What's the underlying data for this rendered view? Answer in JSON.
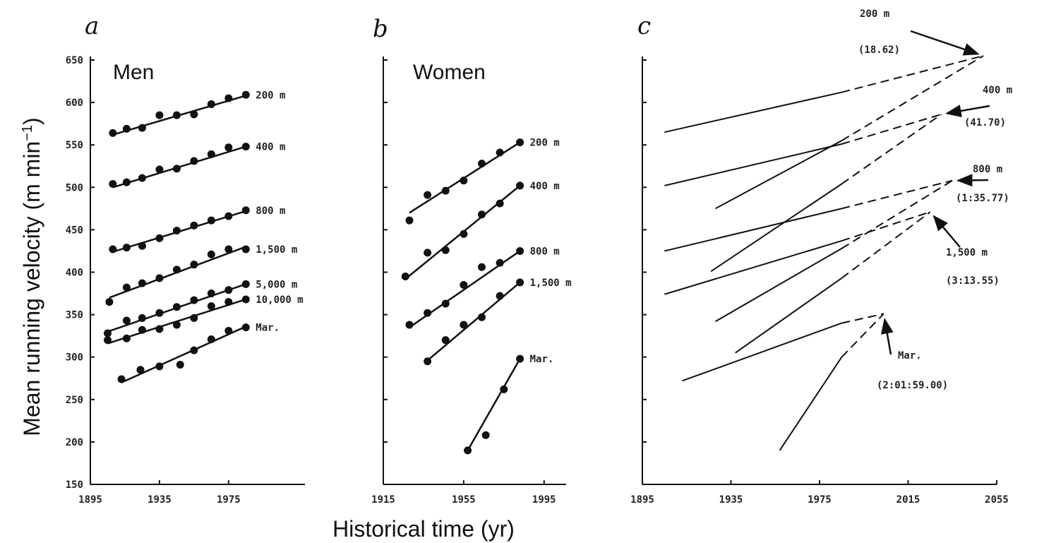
{
  "chart_data": {
    "type": "line",
    "ylabel": "Mean running velocity (m min",
    "ylabel_sup": "−1",
    "ylabel_end": ")",
    "xlabel": "Historical time (yr)",
    "ylim": [
      150,
      650
    ],
    "yticks": [
      150,
      200,
      250,
      300,
      350,
      400,
      450,
      500,
      550,
      600,
      650
    ],
    "panels": [
      {
        "letter": "a",
        "group_label": "Men",
        "xlim": [
          1895,
          2000
        ],
        "xticks": [
          1895,
          1935,
          1975
        ],
        "series": [
          {
            "name": "200 m",
            "points": [
              [
                1908,
                564
              ],
              [
                1916,
                569
              ],
              [
                1925,
                570
              ],
              [
                1935,
                585
              ],
              [
                1945,
                585
              ],
              [
                1955,
                586
              ],
              [
                1965,
                598
              ],
              [
                1975,
                605
              ],
              [
                1985,
                609
              ]
            ],
            "fit": [
              [
                1908,
                562
              ],
              [
                1985,
                608
              ]
            ]
          },
          {
            "name": "400 m",
            "points": [
              [
                1908,
                504
              ],
              [
                1916,
                506
              ],
              [
                1925,
                511
              ],
              [
                1935,
                521
              ],
              [
                1945,
                522
              ],
              [
                1955,
                531
              ],
              [
                1965,
                539
              ],
              [
                1975,
                547
              ],
              [
                1985,
                548
              ]
            ],
            "fit": [
              [
                1908,
                500
              ],
              [
                1985,
                548
              ]
            ]
          },
          {
            "name": "800 m",
            "points": [
              [
                1908,
                427
              ],
              [
                1916,
                429
              ],
              [
                1925,
                431
              ],
              [
                1935,
                440
              ],
              [
                1945,
                449
              ],
              [
                1955,
                455
              ],
              [
                1965,
                461
              ],
              [
                1975,
                466
              ],
              [
                1985,
                473
              ]
            ],
            "fit": [
              [
                1908,
                424
              ],
              [
                1985,
                472
              ]
            ]
          },
          {
            "name": "1,500 m",
            "points": [
              [
                1906,
                365
              ],
              [
                1916,
                382
              ],
              [
                1925,
                387
              ],
              [
                1935,
                393
              ],
              [
                1945,
                403
              ],
              [
                1955,
                409
              ],
              [
                1965,
                421
              ],
              [
                1975,
                427
              ],
              [
                1985,
                427
              ]
            ],
            "fit": [
              [
                1906,
                370
              ],
              [
                1985,
                430
              ]
            ]
          },
          {
            "name": "5,000 m",
            "points": [
              [
                1905,
                328
              ],
              [
                1916,
                343
              ],
              [
                1925,
                346
              ],
              [
                1935,
                352
              ],
              [
                1945,
                359
              ],
              [
                1955,
                367
              ],
              [
                1965,
                375
              ],
              [
                1975,
                379
              ],
              [
                1985,
                386
              ]
            ],
            "fit": [
              [
                1905,
                330
              ],
              [
                1985,
                386
              ]
            ]
          },
          {
            "name": "10,000 m",
            "points": [
              [
                1905,
                320
              ],
              [
                1916,
                322
              ],
              [
                1925,
                332
              ],
              [
                1935,
                333
              ],
              [
                1945,
                338
              ],
              [
                1955,
                346
              ],
              [
                1965,
                360
              ],
              [
                1975,
                365
              ],
              [
                1985,
                368
              ]
            ],
            "fit": [
              [
                1905,
                316
              ],
              [
                1985,
                368
              ]
            ]
          },
          {
            "name": "Mar.",
            "points": [
              [
                1913,
                274
              ],
              [
                1924,
                285
              ],
              [
                1935,
                289
              ],
              [
                1947,
                291
              ],
              [
                1955,
                308
              ],
              [
                1965,
                321
              ],
              [
                1975,
                331
              ],
              [
                1985,
                335
              ]
            ],
            "fit": [
              [
                1913,
                270
              ],
              [
                1985,
                336
              ]
            ]
          }
        ]
      },
      {
        "letter": "b",
        "group_label": "Women",
        "xlim": [
          1915,
          2000
        ],
        "xticks": [
          1915,
          1955,
          1995
        ],
        "series": [
          {
            "name": "200 m",
            "points": [
              [
                1928,
                461
              ],
              [
                1937,
                491
              ],
              [
                1946,
                496
              ],
              [
                1955,
                508
              ],
              [
                1964,
                528
              ],
              [
                1973,
                541
              ],
              [
                1983,
                553
              ]
            ],
            "fit": [
              [
                1928,
                470
              ],
              [
                1983,
                553
              ]
            ]
          },
          {
            "name": "400 m",
            "points": [
              [
                1926,
                395
              ],
              [
                1937,
                423
              ],
              [
                1946,
                426
              ],
              [
                1955,
                445
              ],
              [
                1964,
                468
              ],
              [
                1973,
                481
              ],
              [
                1983,
                502
              ]
            ],
            "fit": [
              [
                1926,
                392
              ],
              [
                1983,
                502
              ]
            ]
          },
          {
            "name": "800 m",
            "points": [
              [
                1928,
                338
              ],
              [
                1937,
                352
              ],
              [
                1946,
                363
              ],
              [
                1955,
                385
              ],
              [
                1964,
                406
              ],
              [
                1973,
                411
              ],
              [
                1983,
                425
              ]
            ],
            "fit": [
              [
                1928,
                335
              ],
              [
                1983,
                425
              ]
            ]
          },
          {
            "name": "1,500 m",
            "points": [
              [
                1937,
                295
              ],
              [
                1946,
                320
              ],
              [
                1955,
                338
              ],
              [
                1964,
                347
              ],
              [
                1973,
                372
              ],
              [
                1983,
                388
              ]
            ],
            "fit": [
              [
                1937,
                296
              ],
              [
                1983,
                388
              ]
            ]
          },
          {
            "name": "Mar.",
            "points": [
              [
                1957,
                190
              ],
              [
                1966,
                208
              ],
              [
                1975,
                262
              ],
              [
                1983,
                298
              ]
            ],
            "fit": [
              [
                1957,
                190
              ],
              [
                1983,
                298
              ]
            ]
          }
        ]
      },
      {
        "letter": "c",
        "xlim": [
          1895,
          2055
        ],
        "xticks": [
          1895,
          1935,
          1975,
          2015,
          2055
        ],
        "series": [
          {
            "name": "Men 200 m",
            "solid": [
              [
                1905,
                565
              ],
              [
                1985,
                612
              ]
            ],
            "dashed": [
              [
                1985,
                612
              ],
              [
                2049,
                655
              ]
            ]
          },
          {
            "name": "Women 200 m",
            "solid": [
              [
                1928,
                475
              ],
              [
                1985,
                555
              ]
            ],
            "dashed": [
              [
                1985,
                555
              ],
              [
                2049,
                655
              ]
            ]
          },
          {
            "name": "Men 400 m",
            "solid": [
              [
                1905,
                502
              ],
              [
                1985,
                551
              ]
            ],
            "dashed": [
              [
                1985,
                551
              ],
              [
                2030,
                586
              ]
            ]
          },
          {
            "name": "Women 400 m",
            "solid": [
              [
                1926,
                401
              ],
              [
                1985,
                504
              ]
            ],
            "dashed": [
              [
                1985,
                504
              ],
              [
                2030,
                586
              ]
            ]
          },
          {
            "name": "Men 800 m",
            "solid": [
              [
                1905,
                425
              ],
              [
                1985,
                475
              ]
            ],
            "dashed": [
              [
                1985,
                475
              ],
              [
                2035,
                508
              ]
            ]
          },
          {
            "name": "Women 800 m",
            "solid": [
              [
                1928,
                342
              ],
              [
                1985,
                428
              ]
            ],
            "dashed": [
              [
                1985,
                428
              ],
              [
                2035,
                508
              ]
            ]
          },
          {
            "name": "Men 1,500 m",
            "solid": [
              [
                1905,
                374
              ],
              [
                1985,
                437
              ]
            ],
            "dashed": [
              [
                1985,
                437
              ],
              [
                2025,
                471
              ]
            ]
          },
          {
            "name": "Women 1,500 m",
            "solid": [
              [
                1937,
                305
              ],
              [
                1985,
                393
              ]
            ],
            "dashed": [
              [
                1985,
                393
              ],
              [
                2025,
                471
              ]
            ]
          },
          {
            "name": "Men Mar.",
            "solid": [
              [
                1913,
                272
              ],
              [
                1985,
                340
              ]
            ],
            "dashed": [
              [
                1985,
                340
              ],
              [
                2004,
                351
              ]
            ]
          },
          {
            "name": "Women Mar.",
            "solid": [
              [
                1957,
                190
              ],
              [
                1985,
                300
              ]
            ],
            "dashed": [
              [
                1985,
                300
              ],
              [
                2004,
                351
              ]
            ]
          }
        ],
        "annotations": [
          {
            "event": "200 m",
            "time": "(18.62)",
            "at": [
              2049,
              655
            ]
          },
          {
            "event": "400 m",
            "time": "(41.70)",
            "at": [
              2030,
              586
            ]
          },
          {
            "event": "800 m",
            "time": "(1:35.77)",
            "at": [
              2035,
              508
            ]
          },
          {
            "event": "1,500 m",
            "time": "(3:13.55)",
            "at": [
              2025,
              471
            ]
          },
          {
            "event": "Mar.",
            "time": "(2:01:59.00)",
            "at": [
              2004,
              351
            ]
          }
        ]
      }
    ]
  }
}
